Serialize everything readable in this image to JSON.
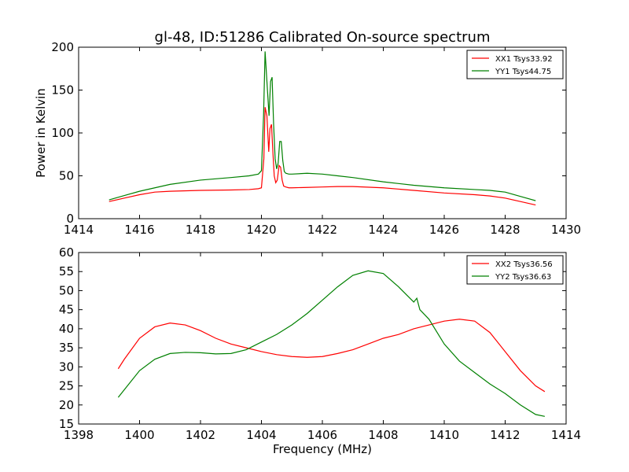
{
  "figure": {
    "title": "gl-48, ID:51286 Calibrated On-source spectrum"
  },
  "chart_data": [
    {
      "type": "line",
      "title": "gl-48, ID:51286 Calibrated On-source spectrum",
      "xlabel": "",
      "ylabel": "Power in Kelvin",
      "xlim": [
        1414,
        1430
      ],
      "ylim": [
        0,
        200
      ],
      "xticks": [
        "1414",
        "1416",
        "1418",
        "1420",
        "1422",
        "1424",
        "1426",
        "1428",
        "1430"
      ],
      "yticks": [
        "0",
        "50",
        "100",
        "150",
        "200"
      ],
      "grid": false,
      "legend_position": "top-right",
      "series": [
        {
          "name": "XX1 Tsys33.92",
          "color": "#ff0000",
          "x": [
            1415.0,
            1415.5,
            1416.0,
            1416.5,
            1417.0,
            1418.0,
            1419.0,
            1419.6,
            1419.9,
            1420.0,
            1420.08,
            1420.12,
            1420.18,
            1420.24,
            1420.28,
            1420.33,
            1420.38,
            1420.42,
            1420.47,
            1420.52,
            1420.58,
            1420.63,
            1420.68,
            1420.73,
            1420.8,
            1420.9,
            1421.0,
            1421.5,
            1422.0,
            1422.5,
            1423.0,
            1424.0,
            1425.0,
            1426.0,
            1427.0,
            1427.5,
            1428.0,
            1428.5,
            1429.0
          ],
          "y": [
            20,
            24,
            28,
            31,
            32,
            33,
            33.5,
            34,
            35,
            36,
            70,
            130,
            120,
            78,
            105,
            110,
            75,
            50,
            42,
            45,
            62,
            60,
            45,
            38,
            37,
            36,
            36,
            36.5,
            37,
            37.5,
            37.5,
            36,
            33,
            30,
            28,
            26.5,
            24,
            20,
            16
          ]
        },
        {
          "name": "YY1 Tsys44.75",
          "color": "#008000",
          "x": [
            1415.0,
            1415.5,
            1416.0,
            1416.5,
            1417.0,
            1418.0,
            1419.0,
            1419.6,
            1419.9,
            1420.0,
            1420.07,
            1420.12,
            1420.18,
            1420.25,
            1420.3,
            1420.35,
            1420.4,
            1420.45,
            1420.5,
            1420.55,
            1420.6,
            1420.65,
            1420.7,
            1420.75,
            1420.8,
            1420.9,
            1421.0,
            1421.5,
            1422.0,
            1422.5,
            1423.0,
            1424.0,
            1425.0,
            1426.0,
            1427.0,
            1427.5,
            1428.0,
            1428.5,
            1429.0
          ],
          "y": [
            22,
            27,
            32,
            36,
            40,
            45,
            48,
            50,
            52,
            56,
            120,
            195,
            160,
            120,
            160,
            165,
            110,
            70,
            58,
            65,
            90,
            90,
            68,
            55,
            53,
            52,
            52,
            53,
            52,
            50,
            48,
            43,
            39,
            36,
            34,
            33,
            31,
            26,
            21
          ]
        }
      ]
    },
    {
      "type": "line",
      "title": "",
      "xlabel": "Frequency (MHz)",
      "ylabel": "",
      "xlim": [
        1398,
        1414
      ],
      "ylim": [
        15,
        60
      ],
      "xticks": [
        "1398",
        "1400",
        "1402",
        "1404",
        "1406",
        "1408",
        "1410",
        "1412",
        "1414"
      ],
      "yticks": [
        "15",
        "20",
        "25",
        "30",
        "35",
        "40",
        "45",
        "50",
        "55",
        "60"
      ],
      "grid": false,
      "legend_position": "top-right",
      "series": [
        {
          "name": "XX2 Tsys36.56",
          "color": "#ff0000",
          "x": [
            1399.3,
            1399.5,
            1400.0,
            1400.5,
            1401.0,
            1401.5,
            1402.0,
            1402.5,
            1403.0,
            1403.5,
            1404.0,
            1404.5,
            1405.0,
            1405.5,
            1406.0,
            1406.5,
            1407.0,
            1407.5,
            1408.0,
            1408.5,
            1409.0,
            1409.5,
            1410.0,
            1410.5,
            1411.0,
            1411.5,
            1412.0,
            1412.5,
            1413.0,
            1413.3
          ],
          "y": [
            29.5,
            32,
            37.5,
            40.5,
            41.5,
            41,
            39.5,
            37.5,
            36,
            35,
            34,
            33.2,
            32.7,
            32.5,
            32.7,
            33.5,
            34.5,
            36,
            37.5,
            38.5,
            40,
            41,
            42,
            42.5,
            42,
            39,
            34,
            29,
            25,
            23.5
          ]
        },
        {
          "name": "YY2 Tsys36.63",
          "color": "#008000",
          "x": [
            1399.3,
            1399.5,
            1400.0,
            1400.5,
            1401.0,
            1401.5,
            1402.0,
            1402.5,
            1403.0,
            1403.5,
            1404.0,
            1404.5,
            1405.0,
            1405.5,
            1406.0,
            1406.5,
            1407.0,
            1407.5,
            1408.0,
            1408.5,
            1409.0,
            1409.1,
            1409.2,
            1409.5,
            1410.0,
            1410.5,
            1411.0,
            1411.5,
            1412.0,
            1412.5,
            1413.0,
            1413.3
          ],
          "y": [
            22,
            24,
            29,
            32,
            33.5,
            33.8,
            33.7,
            33.4,
            33.5,
            34.5,
            36.5,
            38.5,
            41,
            44,
            47.5,
            51,
            54,
            55.2,
            54.5,
            51,
            47,
            48,
            45,
            42.5,
            36,
            31.5,
            28.5,
            25.5,
            23,
            20,
            17.5,
            17
          ]
        }
      ]
    }
  ]
}
